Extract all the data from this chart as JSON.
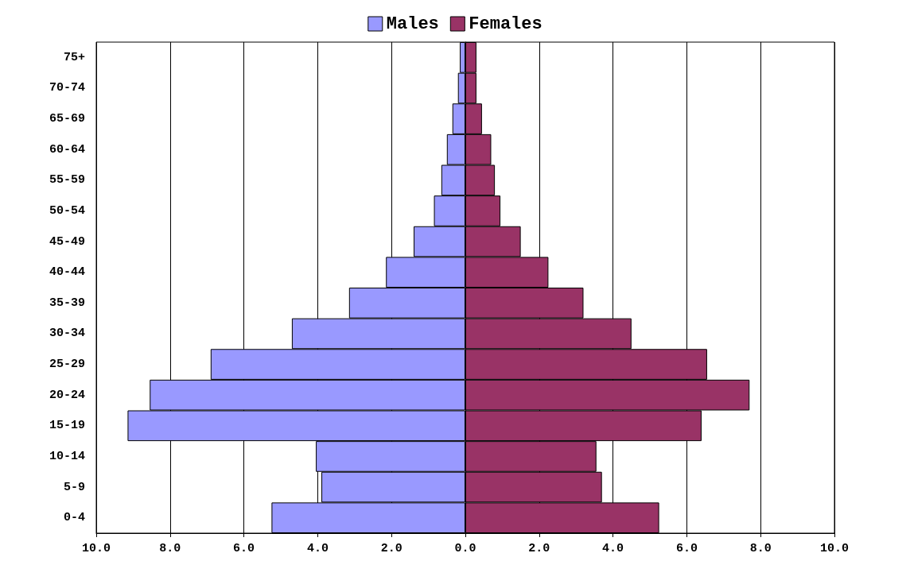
{
  "chart_data": {
    "type": "bar",
    "orientation": "horizontal",
    "categories": [
      "75+",
      "70-74",
      "65-69",
      "60-64",
      "55-59",
      "50-54",
      "45-49",
      "40-44",
      "35-39",
      "30-34",
      "25-29",
      "20-24",
      "15-19",
      "10-14",
      "5-9",
      "0-4"
    ],
    "series": [
      {
        "name": "Males",
        "color": "#9999ff",
        "values": [
          -0.15,
          -0.2,
          -0.35,
          -0.5,
          -0.65,
          -0.85,
          -1.4,
          -2.15,
          -3.15,
          -4.7,
          -6.9,
          -8.55,
          -9.15,
          -4.05,
          -3.9,
          -5.25
        ]
      },
      {
        "name": "Females",
        "color": "#993366",
        "values": [
          0.3,
          0.3,
          0.45,
          0.7,
          0.8,
          0.95,
          1.5,
          2.25,
          3.2,
          4.5,
          6.55,
          7.7,
          6.4,
          3.55,
          3.7,
          5.25
        ]
      }
    ],
    "xlim": [
      -10,
      10
    ],
    "xticks": [
      {
        "value": -10,
        "label": "10.0"
      },
      {
        "value": -8,
        "label": "8.0"
      },
      {
        "value": -6,
        "label": "6.0"
      },
      {
        "value": -4,
        "label": "4.0"
      },
      {
        "value": -2,
        "label": "2.0"
      },
      {
        "value": 0,
        "label": "0.0"
      },
      {
        "value": 2,
        "label": "2.0"
      },
      {
        "value": 4,
        "label": "4.0"
      },
      {
        "value": 6,
        "label": "6.0"
      },
      {
        "value": 8,
        "label": "8.0"
      },
      {
        "value": 10,
        "label": "10.0"
      }
    ],
    "grid": "x",
    "legend": "top",
    "stacked": true
  }
}
